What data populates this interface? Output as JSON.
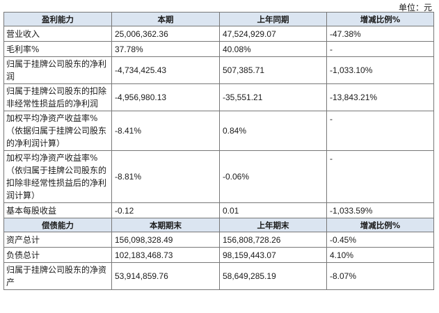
{
  "unit_label": "单位：元",
  "profit_section": {
    "headers": [
      "盈利能力",
      "本期",
      "上年同期",
      "增减比例%"
    ],
    "rows": [
      [
        "营业收入",
        "25,006,362.36",
        "47,524,929.07",
        "-47.38%"
      ],
      [
        "毛利率%",
        "37.78%",
        "40.08%",
        "-"
      ],
      [
        "归属于挂牌公司股东的净利润",
        "-4,734,425.43",
        "507,385.71",
        "-1,033.10%"
      ],
      [
        "归属于挂牌公司股东的扣除非经常性损益后的净利润",
        "-4,956,980.13",
        "-35,551.21",
        "-13,843.21%"
      ],
      [
        "加权平均净资产收益率%（依据归属于挂牌公司股东的净利润计算）",
        "-8.41%",
        "0.84%",
        "-"
      ],
      [
        "加权平均净资产收益率%（依归属于挂牌公司股东的扣除非经常性损益后的净利润计算）",
        "-8.81%",
        "-0.06%",
        "-"
      ],
      [
        "基本每股收益",
        "-0.12",
        "0.01",
        "-1,033.59%"
      ]
    ]
  },
  "solvency_section": {
    "headers": [
      "偿债能力",
      "本期期末",
      "上年期末",
      "增减比例%"
    ],
    "rows": [
      [
        "资产总计",
        "156,098,328.49",
        "156,808,728.26",
        "-0.45%"
      ],
      [
        "负债总计",
        "102,183,468.73",
        "98,159,443.07",
        "4.10%"
      ],
      [
        "归属于挂牌公司股东的净资产",
        "53,914,859.76",
        "58,649,285.19",
        "-8.07%"
      ]
    ]
  }
}
